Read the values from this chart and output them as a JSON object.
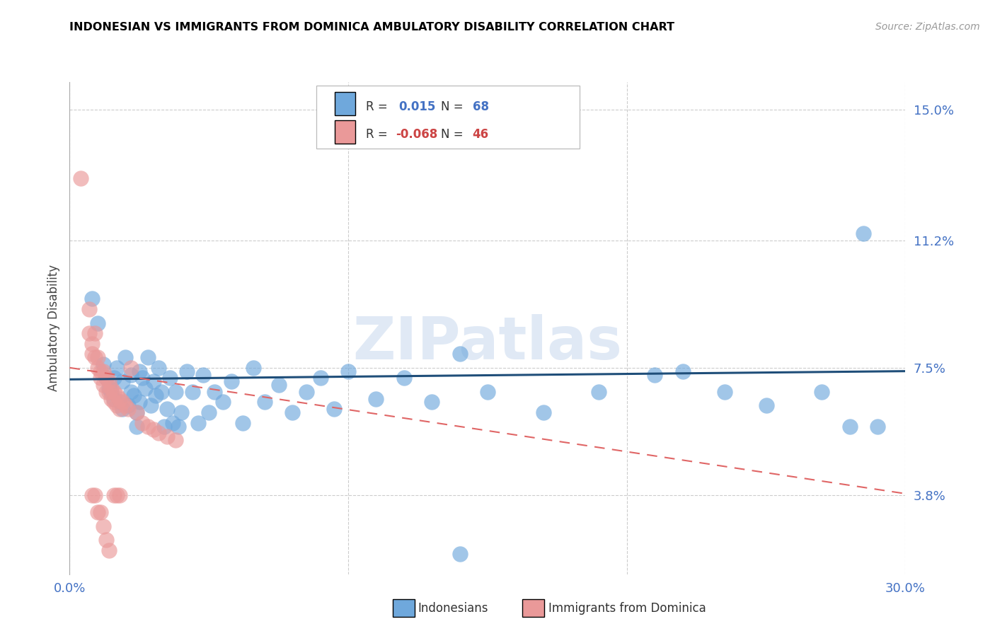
{
  "title": "INDONESIAN VS IMMIGRANTS FROM DOMINICA AMBULATORY DISABILITY CORRELATION CHART",
  "source": "Source: ZipAtlas.com",
  "ylabel": "Ambulatory Disability",
  "yticks": [
    3.8,
    7.5,
    11.2,
    15.0
  ],
  "xlim": [
    0.0,
    0.3
  ],
  "ylim": [
    0.015,
    0.158
  ],
  "color_blue": "#6fa8dc",
  "color_pink": "#ea9999",
  "line_blue": "#1f4e79",
  "line_pink": "#e06666",
  "watermark": "ZIPatlas",
  "indonesians": [
    [
      0.008,
      0.095
    ],
    [
      0.01,
      0.088
    ],
    [
      0.012,
      0.076
    ],
    [
      0.013,
      0.072
    ],
    [
      0.014,
      0.069
    ],
    [
      0.015,
      0.068
    ],
    [
      0.016,
      0.072
    ],
    [
      0.016,
      0.066
    ],
    [
      0.017,
      0.075
    ],
    [
      0.018,
      0.065
    ],
    [
      0.019,
      0.063
    ],
    [
      0.019,
      0.071
    ],
    [
      0.02,
      0.078
    ],
    [
      0.021,
      0.064
    ],
    [
      0.022,
      0.068
    ],
    [
      0.022,
      0.073
    ],
    [
      0.023,
      0.067
    ],
    [
      0.024,
      0.062
    ],
    [
      0.024,
      0.058
    ],
    [
      0.025,
      0.074
    ],
    [
      0.025,
      0.065
    ],
    [
      0.026,
      0.072
    ],
    [
      0.027,
      0.069
    ],
    [
      0.028,
      0.078
    ],
    [
      0.029,
      0.064
    ],
    [
      0.03,
      0.071
    ],
    [
      0.031,
      0.067
    ],
    [
      0.032,
      0.075
    ],
    [
      0.033,
      0.068
    ],
    [
      0.034,
      0.058
    ],
    [
      0.035,
      0.063
    ],
    [
      0.036,
      0.072
    ],
    [
      0.037,
      0.059
    ],
    [
      0.038,
      0.068
    ],
    [
      0.039,
      0.058
    ],
    [
      0.04,
      0.062
    ],
    [
      0.042,
      0.074
    ],
    [
      0.044,
      0.068
    ],
    [
      0.046,
      0.059
    ],
    [
      0.048,
      0.073
    ],
    [
      0.05,
      0.062
    ],
    [
      0.052,
      0.068
    ],
    [
      0.055,
      0.065
    ],
    [
      0.058,
      0.071
    ],
    [
      0.062,
      0.059
    ],
    [
      0.066,
      0.075
    ],
    [
      0.07,
      0.065
    ],
    [
      0.075,
      0.07
    ],
    [
      0.08,
      0.062
    ],
    [
      0.085,
      0.068
    ],
    [
      0.09,
      0.072
    ],
    [
      0.095,
      0.063
    ],
    [
      0.1,
      0.074
    ],
    [
      0.11,
      0.066
    ],
    [
      0.12,
      0.072
    ],
    [
      0.13,
      0.065
    ],
    [
      0.14,
      0.079
    ],
    [
      0.15,
      0.068
    ],
    [
      0.17,
      0.062
    ],
    [
      0.19,
      0.068
    ],
    [
      0.21,
      0.073
    ],
    [
      0.22,
      0.074
    ],
    [
      0.235,
      0.068
    ],
    [
      0.25,
      0.064
    ],
    [
      0.27,
      0.068
    ],
    [
      0.28,
      0.058
    ],
    [
      0.29,
      0.058
    ],
    [
      0.14,
      0.021
    ],
    [
      0.285,
      0.114
    ]
  ],
  "dominicans": [
    [
      0.004,
      0.13
    ],
    [
      0.007,
      0.092
    ],
    [
      0.007,
      0.085
    ],
    [
      0.008,
      0.082
    ],
    [
      0.008,
      0.079
    ],
    [
      0.009,
      0.085
    ],
    [
      0.009,
      0.078
    ],
    [
      0.01,
      0.078
    ],
    [
      0.01,
      0.075
    ],
    [
      0.011,
      0.074
    ],
    [
      0.011,
      0.072
    ],
    [
      0.012,
      0.074
    ],
    [
      0.012,
      0.07
    ],
    [
      0.013,
      0.072
    ],
    [
      0.013,
      0.068
    ],
    [
      0.014,
      0.071
    ],
    [
      0.014,
      0.068
    ],
    [
      0.015,
      0.069
    ],
    [
      0.015,
      0.066
    ],
    [
      0.016,
      0.068
    ],
    [
      0.016,
      0.065
    ],
    [
      0.017,
      0.067
    ],
    [
      0.017,
      0.064
    ],
    [
      0.018,
      0.066
    ],
    [
      0.018,
      0.063
    ],
    [
      0.019,
      0.065
    ],
    [
      0.02,
      0.064
    ],
    [
      0.021,
      0.063
    ],
    [
      0.022,
      0.075
    ],
    [
      0.024,
      0.062
    ],
    [
      0.026,
      0.059
    ],
    [
      0.028,
      0.058
    ],
    [
      0.03,
      0.057
    ],
    [
      0.032,
      0.056
    ],
    [
      0.035,
      0.055
    ],
    [
      0.038,
      0.054
    ],
    [
      0.008,
      0.038
    ],
    [
      0.009,
      0.038
    ],
    [
      0.01,
      0.033
    ],
    [
      0.011,
      0.033
    ],
    [
      0.012,
      0.029
    ],
    [
      0.013,
      0.025
    ],
    [
      0.014,
      0.022
    ],
    [
      0.016,
      0.038
    ],
    [
      0.017,
      0.038
    ],
    [
      0.018,
      0.038
    ]
  ],
  "blue_trend_x": [
    0.0,
    0.3
  ],
  "blue_trend_y": [
    0.0716,
    0.074
  ],
  "pink_trend_x": [
    0.0,
    0.3
  ],
  "pink_trend_y": [
    0.075,
    0.0384
  ]
}
